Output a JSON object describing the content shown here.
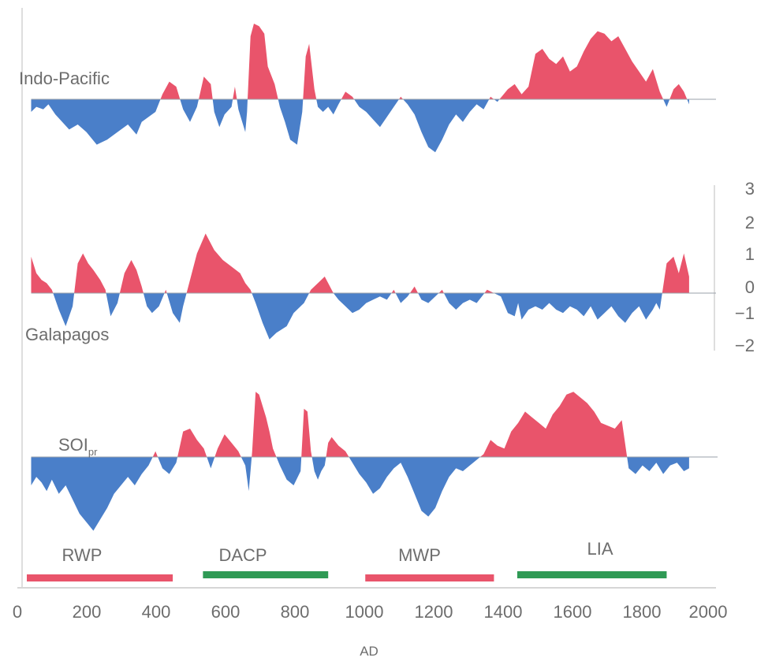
{
  "chart_data": {
    "type": "area",
    "xlabel": "AD",
    "xlim": [
      0,
      2000
    ],
    "x_ticks": [
      "0",
      "200",
      "400",
      "600",
      "800",
      "1000",
      "1200",
      "1400",
      "1600",
      "1800",
      "2000"
    ],
    "y_ticks": [
      "3",
      "2",
      "1",
      "0",
      "−1",
      "−2"
    ],
    "ylim": [
      -2.2,
      3.3
    ],
    "colors": {
      "positive": "#e9546b",
      "negative": "#4a7fc9",
      "warm_period": "#e9546b",
      "cold_period": "#2f9a55",
      "baseline": "#9aa0aa"
    },
    "series": [
      {
        "name": "Indo-Pacific",
        "label_main": "Indo-Pacific",
        "label_sub": "",
        "x": [
          40,
          55,
          75,
          90,
          110,
          130,
          150,
          175,
          200,
          230,
          260,
          290,
          320,
          345,
          360,
          380,
          400,
          420,
          440,
          460,
          480,
          500,
          520,
          540,
          560,
          570,
          585,
          600,
          620,
          630,
          640,
          660,
          665,
          675,
          685,
          700,
          715,
          725,
          745,
          760,
          775,
          790,
          810,
          825,
          835,
          845,
          860,
          870,
          885,
          900,
          915,
          930,
          950,
          970,
          990,
          1010,
          1030,
          1050,
          1070,
          1090,
          1110,
          1130,
          1150,
          1170,
          1190,
          1210,
          1230,
          1250,
          1270,
          1290,
          1310,
          1330,
          1350,
          1370,
          1390,
          1420,
          1440,
          1460,
          1480,
          1500,
          1520,
          1540,
          1560,
          1580,
          1600,
          1620,
          1640,
          1660,
          1680,
          1700,
          1720,
          1740,
          1760,
          1780,
          1800,
          1820,
          1840,
          1860,
          1880,
          1900,
          1915,
          1930,
          1945
        ],
        "values": [
          -0.5,
          -0.3,
          -0.4,
          -0.2,
          -0.6,
          -0.9,
          -1.2,
          -1.0,
          -1.3,
          -1.8,
          -1.6,
          -1.3,
          -1.0,
          -1.4,
          -0.9,
          -0.7,
          -0.5,
          0.2,
          0.7,
          0.5,
          -0.4,
          -0.9,
          -0.3,
          0.9,
          0.6,
          -0.5,
          -1.1,
          -0.6,
          -0.3,
          0.5,
          -0.4,
          -1.3,
          -0.5,
          2.5,
          3.0,
          2.9,
          2.6,
          1.3,
          0.6,
          -0.3,
          -0.9,
          -1.6,
          -1.8,
          -0.5,
          1.7,
          2.2,
          0.4,
          -0.3,
          -0.5,
          -0.3,
          -0.6,
          -0.2,
          0.3,
          0.1,
          -0.3,
          -0.5,
          -0.8,
          -1.1,
          -0.7,
          -0.3,
          0.1,
          -0.2,
          -0.6,
          -1.3,
          -1.9,
          -2.1,
          -1.6,
          -1.0,
          -0.6,
          -0.9,
          -0.5,
          -0.2,
          -0.4,
          0.1,
          -0.1,
          0.4,
          0.6,
          0.2,
          0.5,
          1.8,
          2.0,
          1.6,
          1.4,
          1.7,
          1.1,
          1.3,
          1.9,
          2.4,
          2.7,
          2.6,
          2.3,
          2.5,
          2.0,
          1.5,
          1.1,
          0.7,
          1.2,
          0.3,
          -0.3,
          0.4,
          0.6,
          0.3,
          -0.2
        ]
      },
      {
        "name": "Galapagos",
        "label_main": "Galapagos",
        "label_sub": "",
        "x": [
          40,
          55,
          70,
          85,
          100,
          120,
          140,
          160,
          175,
          190,
          205,
          220,
          240,
          255,
          270,
          290,
          310,
          330,
          345,
          360,
          375,
          390,
          410,
          430,
          450,
          470,
          480,
          495,
          520,
          545,
          570,
          595,
          620,
          645,
          660,
          675,
          690,
          710,
          730,
          750,
          780,
          800,
          830,
          850,
          870,
          890,
          900,
          915,
          930,
          950,
          970,
          990,
          1010,
          1030,
          1050,
          1070,
          1090,
          1110,
          1130,
          1150,
          1170,
          1190,
          1210,
          1230,
          1250,
          1270,
          1290,
          1310,
          1330,
          1345,
          1360,
          1380,
          1400,
          1420,
          1440,
          1450,
          1460,
          1480,
          1500,
          1520,
          1540,
          1560,
          1580,
          1600,
          1620,
          1640,
          1660,
          1680,
          1700,
          1720,
          1740,
          1760,
          1780,
          1800,
          1820,
          1840,
          1850,
          1860,
          1880,
          1900,
          1915,
          1930,
          1945
        ],
        "values": [
          1.1,
          0.6,
          0.4,
          0.3,
          0.1,
          -0.5,
          -1.0,
          -0.4,
          0.9,
          1.2,
          0.9,
          0.7,
          0.4,
          0.1,
          -0.7,
          -0.3,
          0.6,
          1.0,
          0.7,
          0.2,
          -0.4,
          -0.6,
          -0.4,
          0.1,
          -0.6,
          -0.9,
          -0.4,
          0.2,
          1.2,
          1.8,
          1.3,
          1.0,
          0.8,
          0.6,
          0.3,
          0.1,
          -0.3,
          -0.9,
          -1.4,
          -1.2,
          -1.0,
          -0.6,
          -0.3,
          0.1,
          0.3,
          0.5,
          0.3,
          0.0,
          -0.2,
          -0.4,
          -0.6,
          -0.5,
          -0.3,
          -0.2,
          -0.1,
          -0.2,
          0.1,
          -0.3,
          -0.1,
          0.2,
          -0.2,
          -0.3,
          -0.1,
          0.1,
          -0.3,
          -0.5,
          -0.3,
          -0.2,
          -0.3,
          -0.1,
          0.1,
          0.0,
          -0.1,
          -0.6,
          -0.7,
          -0.3,
          -0.8,
          -0.5,
          -0.4,
          -0.5,
          -0.3,
          -0.5,
          -0.6,
          -0.4,
          -0.5,
          -0.7,
          -0.4,
          -0.8,
          -0.6,
          -0.4,
          -0.7,
          -0.9,
          -0.6,
          -0.4,
          -0.8,
          -0.5,
          -0.3,
          -0.5,
          0.9,
          1.1,
          0.6,
          1.2,
          0.5
        ]
      },
      {
        "name": "SOIpr",
        "label_main": "SOI",
        "label_sub": "pr",
        "x": [
          40,
          55,
          70,
          85,
          100,
          120,
          140,
          160,
          180,
          200,
          220,
          240,
          260,
          280,
          300,
          320,
          340,
          360,
          380,
          400,
          420,
          440,
          460,
          480,
          500,
          520,
          540,
          560,
          580,
          600,
          620,
          640,
          660,
          670,
          680,
          690,
          700,
          710,
          720,
          730,
          740,
          760,
          780,
          800,
          820,
          830,
          840,
          850,
          860,
          870,
          880,
          890,
          900,
          910,
          930,
          950,
          970,
          990,
          1010,
          1030,
          1050,
          1070,
          1090,
          1110,
          1130,
          1150,
          1170,
          1190,
          1210,
          1230,
          1250,
          1270,
          1290,
          1310,
          1330,
          1350,
          1370,
          1390,
          1410,
          1430,
          1450,
          1470,
          1490,
          1510,
          1530,
          1550,
          1570,
          1590,
          1610,
          1630,
          1650,
          1670,
          1690,
          1710,
          1730,
          1750,
          1770,
          1790,
          1810,
          1830,
          1850,
          1870,
          1890,
          1910,
          1930,
          1945
        ],
        "values": [
          -1.0,
          -0.7,
          -0.9,
          -1.2,
          -0.8,
          -1.3,
          -1.0,
          -1.5,
          -2.0,
          -2.3,
          -2.6,
          -2.2,
          -1.8,
          -1.3,
          -1.0,
          -0.7,
          -1.0,
          -0.6,
          -0.3,
          0.2,
          -0.4,
          -0.6,
          -0.2,
          0.9,
          1.0,
          0.6,
          0.3,
          -0.4,
          0.3,
          0.8,
          0.5,
          0.2,
          -0.3,
          -1.2,
          0.2,
          2.3,
          2.2,
          1.8,
          1.4,
          0.9,
          0.3,
          -0.3,
          -0.8,
          -1.0,
          -0.5,
          1.7,
          1.6,
          0.2,
          -0.5,
          -0.8,
          -0.5,
          -0.3,
          0.5,
          0.7,
          0.4,
          0.2,
          -0.2,
          -0.6,
          -0.9,
          -1.3,
          -1.1,
          -0.7,
          -0.4,
          -0.2,
          -0.7,
          -1.3,
          -1.9,
          -2.1,
          -1.8,
          -1.2,
          -0.7,
          -0.4,
          -0.5,
          -0.3,
          -0.1,
          0.1,
          0.6,
          0.4,
          0.3,
          0.9,
          1.2,
          1.6,
          1.4,
          1.2,
          1.0,
          1.5,
          1.8,
          2.2,
          2.3,
          2.1,
          1.9,
          1.6,
          1.2,
          1.1,
          1.0,
          1.3,
          -0.4,
          -0.6,
          -0.3,
          -0.5,
          -0.2,
          -0.6,
          -0.3,
          -0.2,
          -0.5,
          -0.4
        ]
      }
    ],
    "periods": [
      {
        "label": "RWP",
        "start": 0,
        "end": 450,
        "kind": "warm"
      },
      {
        "label": "DACP",
        "start": 510,
        "end": 900,
        "kind": "cold"
      },
      {
        "label": "MWP",
        "start": 980,
        "end": 1380,
        "kind": "warm"
      },
      {
        "label": "LIA",
        "start": 1420,
        "end": 1880,
        "kind": "cold"
      }
    ]
  }
}
